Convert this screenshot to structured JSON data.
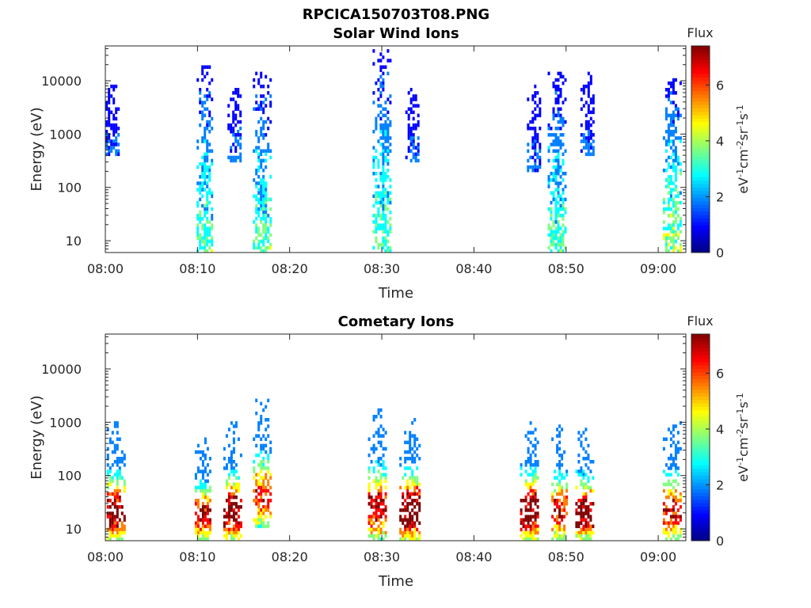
{
  "figure": {
    "title": "RPCICA150703T08.PNG"
  },
  "colormap": [
    "#00007f",
    "#0000ff",
    "#007fff",
    "#00ffff",
    "#7fff7f",
    "#ffff00",
    "#ff7f00",
    "#ff0000",
    "#7f0000"
  ],
  "chart_data": [
    {
      "type": "heatmap",
      "title": "Solar Wind Ions",
      "xlabel": "Time",
      "ylabel": "Energy (eV)",
      "y_scale": "log",
      "xlim": [
        "08:00",
        "09:03"
      ],
      "ylim": [
        6,
        45000
      ],
      "x_ticks": [
        "08:00",
        "08:10",
        "08:20",
        "08:30",
        "08:40",
        "08:50",
        "09:00"
      ],
      "y_ticks": [
        10,
        100,
        1000,
        10000
      ],
      "y_tick_labels": [
        "10",
        "100",
        "1000",
        "10000"
      ],
      "colorbar": {
        "label": "Flux",
        "unit_label": "eV-1cm-2sr-1s-1",
        "range": [
          0,
          7.4
        ],
        "ticks": [
          "0",
          "2",
          "4",
          "6"
        ]
      },
      "bursts": [
        {
          "time": "08:00.5",
          "emin": 400,
          "emax": 9000,
          "peak": 1.8,
          "width_min": 2.0
        },
        {
          "time": "08:10.8",
          "emin": 6,
          "emax": 20000,
          "peak": 3.6,
          "width_min": 1.8
        },
        {
          "time": "08:14.0",
          "emin": 300,
          "emax": 9000,
          "peak": 1.8,
          "width_min": 1.5
        },
        {
          "time": "08:17.0",
          "emin": 6,
          "emax": 14000,
          "peak": 3.6,
          "width_min": 2.0
        },
        {
          "time": "08:30.0",
          "emin": 6,
          "emax": 40000,
          "peak": 3.6,
          "width_min": 2.0
        },
        {
          "time": "08:33.3",
          "emin": 300,
          "emax": 9000,
          "peak": 1.8,
          "width_min": 1.5
        },
        {
          "time": "08:46.5",
          "emin": 200,
          "emax": 8000,
          "peak": 1.8,
          "width_min": 1.5
        },
        {
          "time": "08:49.0",
          "emin": 6,
          "emax": 14000,
          "peak": 3.6,
          "width_min": 2.0
        },
        {
          "time": "08:52.3",
          "emin": 400,
          "emax": 14000,
          "peak": 1.8,
          "width_min": 1.5
        },
        {
          "time": "09:01.5",
          "emin": 6,
          "emax": 11000,
          "peak": 4.2,
          "width_min": 2.0
        }
      ]
    },
    {
      "type": "heatmap",
      "title": "Cometary Ions",
      "xlabel": "Time",
      "ylabel": "Energy (eV)",
      "y_scale": "log",
      "xlim": [
        "08:00",
        "09:03"
      ],
      "ylim": [
        6,
        45000
      ],
      "x_ticks": [
        "08:00",
        "08:10",
        "08:20",
        "08:30",
        "08:40",
        "08:50",
        "09:00"
      ],
      "y_ticks": [
        10,
        100,
        1000,
        10000
      ],
      "y_tick_labels": [
        "10",
        "100",
        "1000",
        "10000"
      ],
      "colorbar": {
        "label": "Flux",
        "unit_label": "eV-1cm-2sr-1s-1",
        "range": [
          0,
          7.4
        ],
        "ticks": [
          "0",
          "2",
          "4",
          "6"
        ]
      },
      "bursts": [
        {
          "time": "08:01.0",
          "emin": 6,
          "emax": 1000,
          "peak": 6.6,
          "width_min": 2.2
        },
        {
          "time": "08:10.5",
          "emin": 6,
          "emax": 500,
          "peak": 5.8,
          "width_min": 1.6
        },
        {
          "time": "08:13.8",
          "emin": 6,
          "emax": 1000,
          "peak": 6.8,
          "width_min": 2.0
        },
        {
          "time": "08:17.0",
          "emin": 10,
          "emax": 3000,
          "peak": 5.2,
          "width_min": 2.0
        },
        {
          "time": "08:29.5",
          "emin": 6,
          "emax": 1800,
          "peak": 5.8,
          "width_min": 2.0
        },
        {
          "time": "08:33.0",
          "emin": 6,
          "emax": 1200,
          "peak": 7.2,
          "width_min": 2.2
        },
        {
          "time": "08:46.0",
          "emin": 6,
          "emax": 1200,
          "peak": 6.8,
          "width_min": 2.0
        },
        {
          "time": "08:49.2",
          "emin": 6,
          "emax": 1100,
          "peak": 5.4,
          "width_min": 1.6
        },
        {
          "time": "08:52.0",
          "emin": 6,
          "emax": 800,
          "peak": 6.6,
          "width_min": 2.0
        },
        {
          "time": "09:01.5",
          "emin": 6,
          "emax": 1000,
          "peak": 5.6,
          "width_min": 2.0
        }
      ]
    }
  ]
}
